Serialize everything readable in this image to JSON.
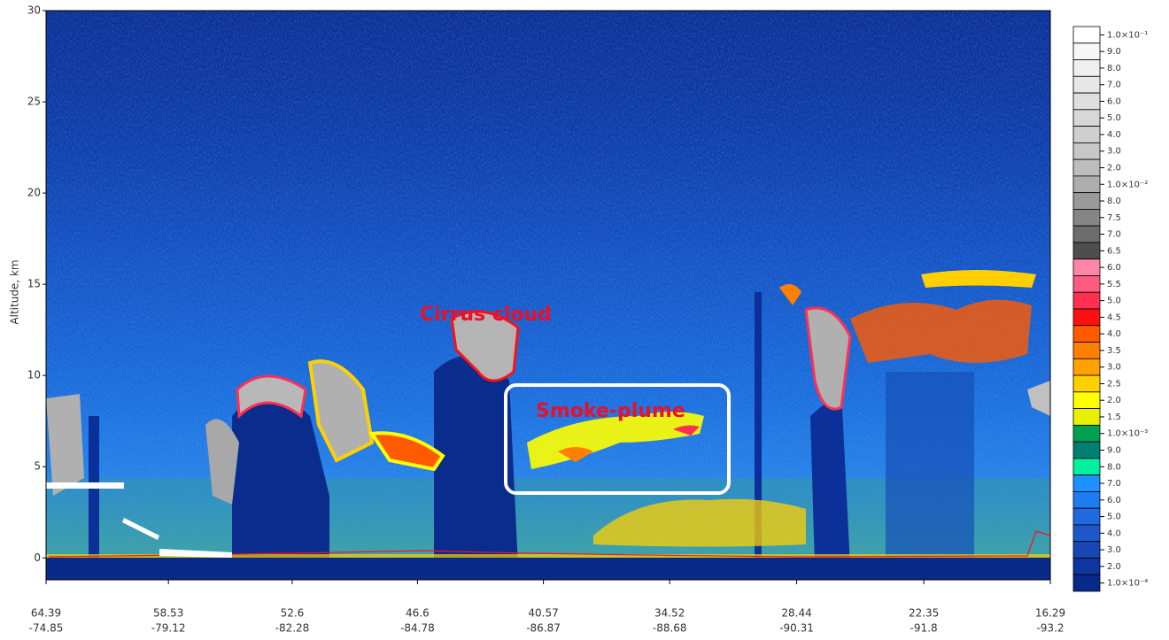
{
  "chart_data": {
    "type": "heatmap",
    "ylabel": "Altitude, km",
    "ylim": [
      -1.2,
      30
    ],
    "yticks": [
      0,
      5,
      10,
      15,
      20,
      25,
      30
    ],
    "xlim": [
      64.39,
      16.29
    ],
    "xticks": [
      64.39,
      58.53,
      52.6,
      46.6,
      40.57,
      34.52,
      28.44,
      22.35,
      16.29
    ],
    "xtick_longitudes": [
      -74.85,
      -79.12,
      -82.28,
      -84.78,
      -86.87,
      -88.68,
      -90.31,
      -91.8,
      -93.2
    ],
    "annotations": [
      "Cirrus cloud",
      "Smoke-plume"
    ],
    "colorbar": [
      {
        "value": 0.1,
        "label": "1.0×10⁻¹",
        "color": "#ffffff"
      },
      {
        "value": 0.09,
        "label": "9.0",
        "color": "#f7f7f7"
      },
      {
        "value": 0.08,
        "label": "8.0",
        "color": "#efefef"
      },
      {
        "value": 0.07,
        "label": "7.0",
        "color": "#e7e7e7"
      },
      {
        "value": 0.06,
        "label": "6.0",
        "color": "#dfdfdf"
      },
      {
        "value": 0.05,
        "label": "5.0",
        "color": "#d7d7d7"
      },
      {
        "value": 0.04,
        "label": "4.0",
        "color": "#cfcfcf"
      },
      {
        "value": 0.03,
        "label": "3.0",
        "color": "#c7c7c7"
      },
      {
        "value": 0.02,
        "label": "2.0",
        "color": "#bdbdbd"
      },
      {
        "value": 0.01,
        "label": "1.0×10⁻²",
        "color": "#adadad"
      },
      {
        "value": 0.008,
        "label": "8.0",
        "color": "#9a9a9a"
      },
      {
        "value": 0.0075,
        "label": "7.5",
        "color": "#858585"
      },
      {
        "value": 0.007,
        "label": "7.0",
        "color": "#6c6c6c"
      },
      {
        "value": 0.0065,
        "label": "6.5",
        "color": "#4e4e4e"
      },
      {
        "value": 0.006,
        "label": "6.0",
        "color": "#ff85a8"
      },
      {
        "value": 0.0055,
        "label": "5.5",
        "color": "#ff5a80"
      },
      {
        "value": 0.005,
        "label": "5.0",
        "color": "#ff3050"
      },
      {
        "value": 0.0045,
        "label": "4.5",
        "color": "#ff1010"
      },
      {
        "value": 0.004,
        "label": "4.0",
        "color": "#ff5a00"
      },
      {
        "value": 0.0035,
        "label": "3.5",
        "color": "#ff8000"
      },
      {
        "value": 0.003,
        "label": "3.0",
        "color": "#ffa200"
      },
      {
        "value": 0.0025,
        "label": "2.5",
        "color": "#ffd000"
      },
      {
        "value": 0.002,
        "label": "2.0",
        "color": "#ffff00"
      },
      {
        "value": 0.0015,
        "label": "1.5",
        "color": "#e8f000"
      },
      {
        "value": 0.001,
        "label": "1.0×10⁻³",
        "color": "#00a050"
      },
      {
        "value": 0.0009,
        "label": "9.0",
        "color": "#008070"
      },
      {
        "value": 0.0008,
        "label": "8.0",
        "color": "#00f0a0"
      },
      {
        "value": 0.0007,
        "label": "7.0",
        "color": "#1e90ff"
      },
      {
        "value": 0.0006,
        "label": "6.0",
        "color": "#1e7cf0"
      },
      {
        "value": 0.0005,
        "label": "5.0",
        "color": "#1e6ade"
      },
      {
        "value": 0.0004,
        "label": "4.0",
        "color": "#1e58c8"
      },
      {
        "value": 0.0003,
        "label": "3.0",
        "color": "#1846b4"
      },
      {
        "value": 0.0002,
        "label": "2.0",
        "color": "#0e369e"
      },
      {
        "value": 0.0001,
        "label": "1.0×10⁻⁴",
        "color": "#082a8a"
      }
    ]
  }
}
